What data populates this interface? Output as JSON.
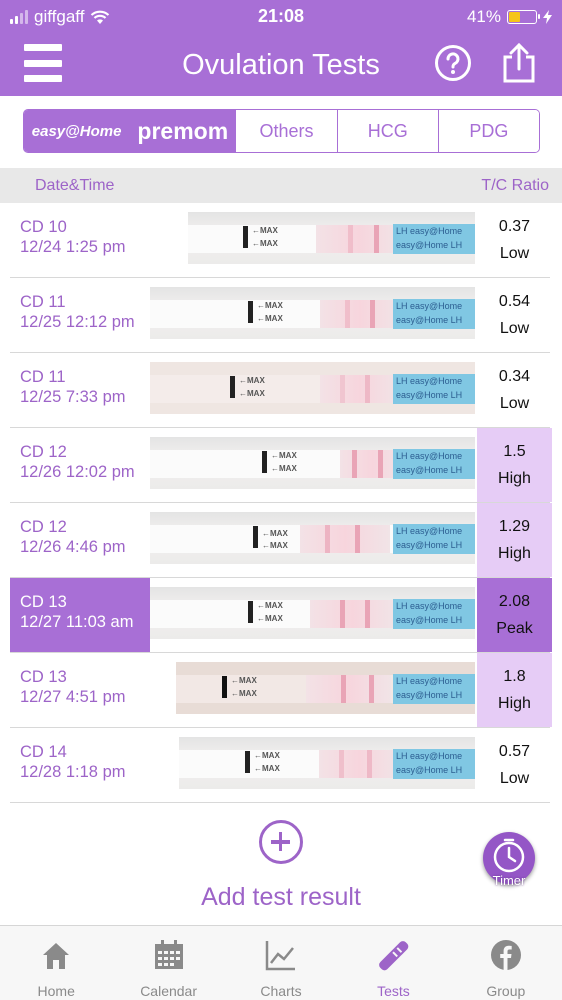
{
  "status_bar": {
    "carrier": "giffgaff",
    "time": "21:08",
    "battery": "41%",
    "battery_level": 0.41
  },
  "header": {
    "title": "Ovulation Tests"
  },
  "brand_tabs": [
    {
      "label": "easy@Home",
      "selected": true
    },
    {
      "label": "premom",
      "selected": true
    },
    {
      "label": "Others",
      "selected": false
    },
    {
      "label": "HCG",
      "selected": false
    },
    {
      "label": "PDG",
      "selected": false
    }
  ],
  "list_header": {
    "date_time": "Date&Time",
    "ratio": "T/C Ratio"
  },
  "tests": [
    {
      "cd": "CD 10",
      "datetime": "12/24 1:25 pm",
      "ratio": "0.37",
      "level": "Low"
    },
    {
      "cd": "CD 11",
      "datetime": "12/25 12:12 pm",
      "ratio": "0.54",
      "level": "Low"
    },
    {
      "cd": "CD 11",
      "datetime": "12/25 7:33 pm",
      "ratio": "0.34",
      "level": "Low"
    },
    {
      "cd": "CD 12",
      "datetime": "12/26 12:02 pm",
      "ratio": "1.5",
      "level": "High"
    },
    {
      "cd": "CD 12",
      "datetime": "12/26 4:46 pm",
      "ratio": "1.29",
      "level": "High"
    },
    {
      "cd": "CD 13",
      "datetime": "12/27 11:03 am",
      "ratio": "2.08",
      "level": "Peak"
    },
    {
      "cd": "CD 13",
      "datetime": "12/27 4:51 pm",
      "ratio": "1.8",
      "level": "High"
    },
    {
      "cd": "CD 14",
      "datetime": "12/28 1:18 pm",
      "ratio": "0.57",
      "level": "Low"
    }
  ],
  "strip_text": {
    "max": "←MAX",
    "lh": "LH",
    "brand": "easy@Home"
  },
  "add_result": {
    "label": "Add test result"
  },
  "timer": {
    "label": "Timer"
  },
  "tab_bar": [
    {
      "label": "Home",
      "icon": "home-icon"
    },
    {
      "label": "Calendar",
      "icon": "calendar-icon"
    },
    {
      "label": "Charts",
      "icon": "charts-icon"
    },
    {
      "label": "Tests",
      "icon": "test-strip-icon",
      "active": true
    },
    {
      "label": "Group",
      "icon": "facebook-icon"
    }
  ],
  "colors": {
    "brand": "#a86fd6",
    "high": "#e6ccf6",
    "text": "#9d64c8"
  }
}
